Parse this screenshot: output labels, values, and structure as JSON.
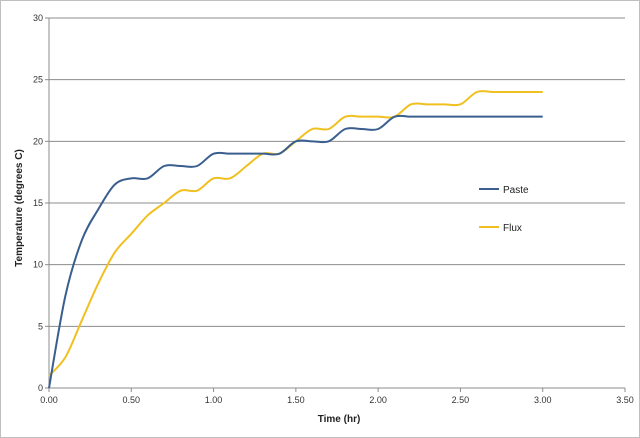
{
  "chart_data": {
    "type": "line",
    "xlabel": "Time (hr)",
    "ylabel": "Temperature (degrees C)",
    "xlim": [
      0,
      3.5
    ],
    "ylim": [
      0,
      30
    ],
    "x_ticks": [
      "0.00",
      "0.50",
      "1.00",
      "1.50",
      "2.00",
      "2.50",
      "3.00",
      "3.50"
    ],
    "y_ticks": [
      "0",
      "5",
      "10",
      "15",
      "20",
      "25",
      "30"
    ],
    "grid": "horizontal",
    "legend_position": "right",
    "series": [
      {
        "name": "Paste",
        "color": "#3a5f8f",
        "x": [
          0,
          0.1,
          0.2,
          0.3,
          0.4,
          0.5,
          0.6,
          0.7,
          0.8,
          0.9,
          1.0,
          1.1,
          1.2,
          1.3,
          1.4,
          1.5,
          1.6,
          1.7,
          1.8,
          1.9,
          2.0,
          2.1,
          2.2,
          2.3,
          2.4,
          2.5,
          2.6,
          2.7,
          2.8,
          2.9,
          3.0
        ],
        "values": [
          0,
          7.5,
          12,
          14.5,
          16.5,
          17,
          17,
          18,
          18,
          18,
          19,
          19,
          19,
          19,
          19,
          20,
          20,
          20,
          21,
          21,
          21,
          22,
          22,
          22,
          22,
          22,
          22,
          22,
          22,
          22,
          22
        ]
      },
      {
        "name": "Flux",
        "color": "#f0c020",
        "x": [
          0,
          0.1,
          0.2,
          0.3,
          0.4,
          0.5,
          0.6,
          0.7,
          0.8,
          0.9,
          1.0,
          1.1,
          1.2,
          1.3,
          1.4,
          1.5,
          1.6,
          1.7,
          1.8,
          1.9,
          2.0,
          2.1,
          2.2,
          2.3,
          2.4,
          2.5,
          2.6,
          2.7,
          2.8,
          2.9,
          3.0
        ],
        "values": [
          1,
          2.5,
          5.5,
          8.5,
          11,
          12.5,
          14,
          15,
          16,
          16,
          17,
          17,
          18,
          19,
          19,
          20,
          21,
          21,
          22,
          22,
          22,
          22,
          23,
          23,
          23,
          23,
          24,
          24,
          24,
          24,
          24
        ]
      }
    ]
  }
}
